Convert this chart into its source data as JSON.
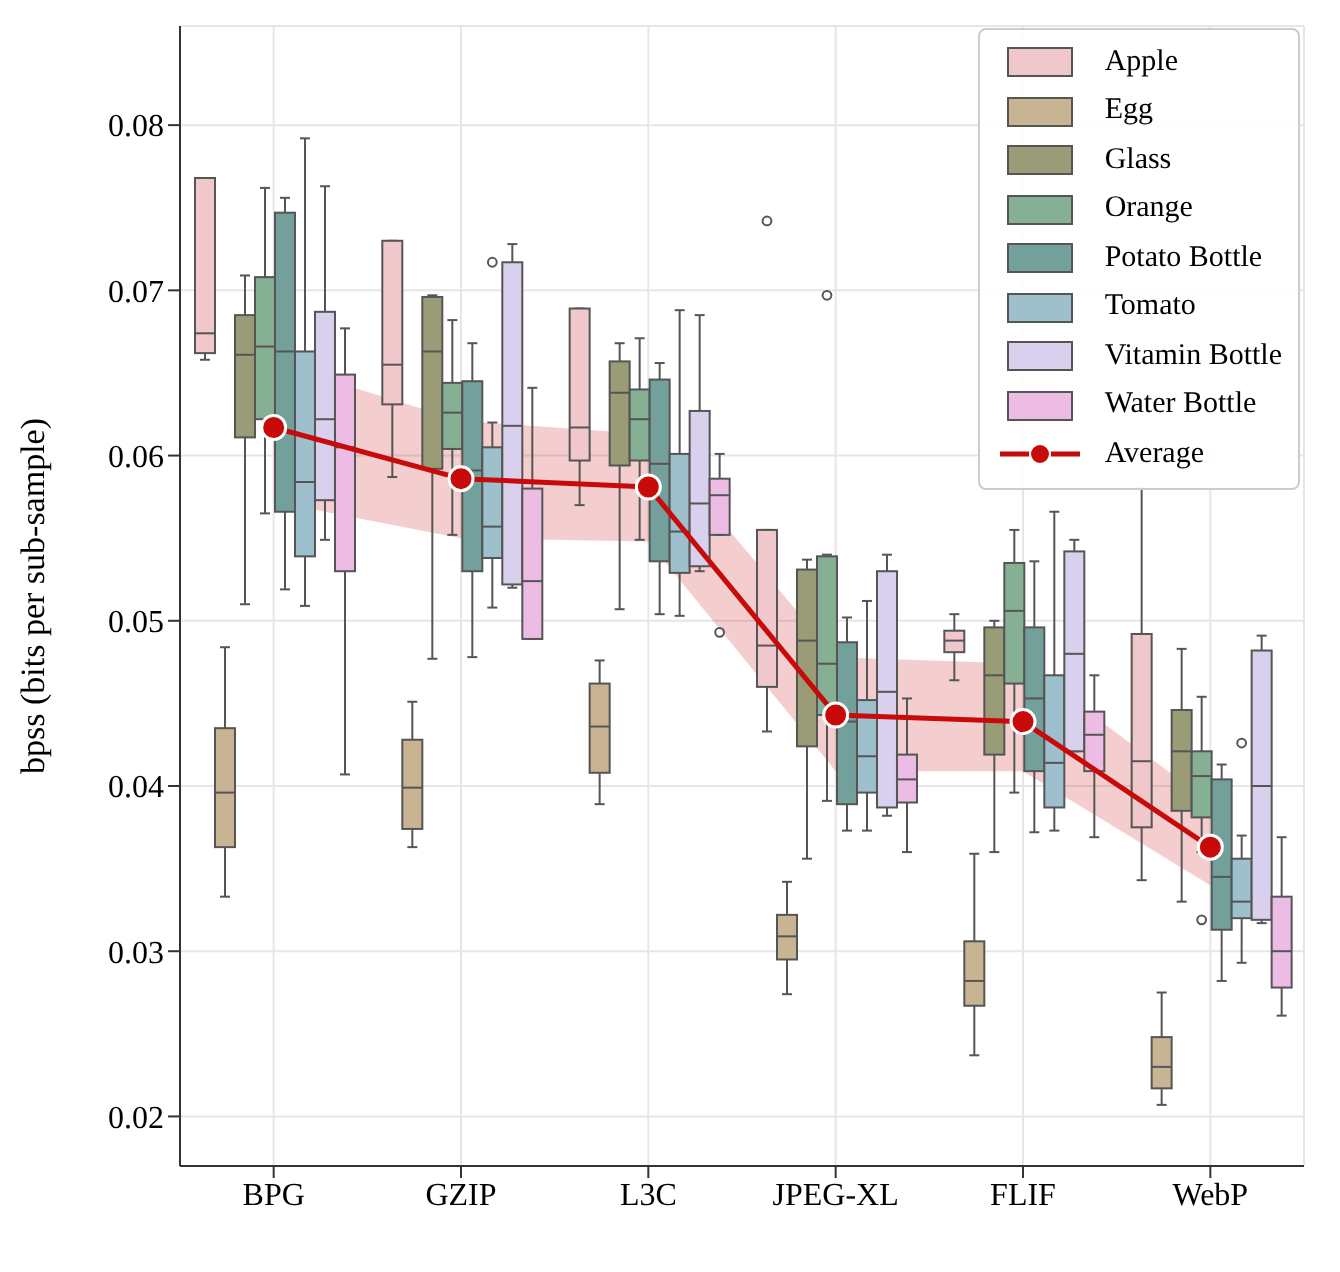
{
  "chart_data": {
    "type": "box",
    "ylabel": "bpss (bits per sub-sample)",
    "categories": [
      "BPG",
      "GZIP",
      "L3C",
      "JPEG-XL",
      "FLIF",
      "WebP"
    ],
    "ylim": [
      0.017,
      0.086
    ],
    "yticks": [
      0.02,
      0.03,
      0.04,
      0.05,
      0.06,
      0.07,
      0.08
    ],
    "grid": true,
    "legend": "top right",
    "marker": "circle",
    "line_style": "solid",
    "series": [
      {
        "name": "Apple",
        "color": "#f0c8cc",
        "boxes": [
          {
            "low": 0.0658,
            "q1": 0.0662,
            "median": 0.0674,
            "q3": 0.0768,
            "high": 0.0768
          },
          {
            "low": 0.0587,
            "q1": 0.0631,
            "median": 0.0655,
            "q3": 0.073,
            "high": 0.073
          },
          {
            "low": 0.057,
            "q1": 0.0597,
            "median": 0.0617,
            "q3": 0.0689,
            "high": 0.0689
          },
          {
            "low": 0.0433,
            "q1": 0.046,
            "median": 0.0485,
            "q3": 0.0555,
            "high": 0.0555,
            "outliers": [
              0.0742
            ]
          },
          {
            "low": 0.0464,
            "q1": 0.0481,
            "median": 0.0488,
            "q3": 0.0494,
            "high": 0.0504
          },
          {
            "low": 0.0343,
            "q1": 0.0375,
            "median": 0.0415,
            "q3": 0.0492,
            "high": 0.058
          }
        ]
      },
      {
        "name": "Egg",
        "color": "#c8b393",
        "boxes": [
          {
            "low": 0.0333,
            "q1": 0.0363,
            "median": 0.0396,
            "q3": 0.0435,
            "high": 0.0484
          },
          {
            "low": 0.0363,
            "q1": 0.0374,
            "median": 0.0399,
            "q3": 0.0428,
            "high": 0.0451
          },
          {
            "low": 0.0389,
            "q1": 0.0408,
            "median": 0.0436,
            "q3": 0.0462,
            "high": 0.0476
          },
          {
            "low": 0.0274,
            "q1": 0.0295,
            "median": 0.0309,
            "q3": 0.0322,
            "high": 0.0342
          },
          {
            "low": 0.0237,
            "q1": 0.0267,
            "median": 0.0282,
            "q3": 0.0306,
            "high": 0.0359
          },
          {
            "low": 0.0207,
            "q1": 0.0217,
            "median": 0.023,
            "q3": 0.0248,
            "high": 0.0275
          }
        ]
      },
      {
        "name": "Glass",
        "color": "#9a9c78",
        "boxes": [
          {
            "low": 0.051,
            "q1": 0.0611,
            "median": 0.0661,
            "q3": 0.0685,
            "high": 0.0709
          },
          {
            "low": 0.0477,
            "q1": 0.0592,
            "median": 0.0663,
            "q3": 0.0696,
            "high": 0.0697
          },
          {
            "low": 0.0507,
            "q1": 0.0594,
            "median": 0.0638,
            "q3": 0.0657,
            "high": 0.0668
          },
          {
            "low": 0.0356,
            "q1": 0.0424,
            "median": 0.0488,
            "q3": 0.0531,
            "high": 0.0537
          },
          {
            "low": 0.036,
            "q1": 0.0419,
            "median": 0.0467,
            "q3": 0.0496,
            "high": 0.05
          },
          {
            "low": 0.033,
            "q1": 0.0385,
            "median": 0.0421,
            "q3": 0.0446,
            "high": 0.0483
          }
        ]
      },
      {
        "name": "Orange",
        "color": "#85b094",
        "boxes": [
          {
            "low": 0.0565,
            "q1": 0.0622,
            "median": 0.0666,
            "q3": 0.0708,
            "high": 0.0762
          },
          {
            "low": 0.0552,
            "q1": 0.0604,
            "median": 0.0626,
            "q3": 0.0644,
            "high": 0.0682
          },
          {
            "low": 0.0549,
            "q1": 0.0597,
            "median": 0.0622,
            "q3": 0.064,
            "high": 0.0671
          },
          {
            "low": 0.0391,
            "q1": 0.0443,
            "median": 0.0474,
            "q3": 0.0539,
            "high": 0.054,
            "outliers": [
              0.0697
            ]
          },
          {
            "low": 0.0396,
            "q1": 0.0462,
            "median": 0.0506,
            "q3": 0.0535,
            "high": 0.0555
          },
          {
            "low": 0.036,
            "q1": 0.0381,
            "median": 0.0406,
            "q3": 0.0421,
            "high": 0.0454,
            "outliers": [
              0.0319
            ]
          }
        ]
      },
      {
        "name": "Potato Bottle",
        "color": "#74a09c",
        "boxes": [
          {
            "low": 0.0519,
            "q1": 0.0566,
            "median": 0.0663,
            "q3": 0.0747,
            "high": 0.0756
          },
          {
            "low": 0.0478,
            "q1": 0.053,
            "median": 0.0591,
            "q3": 0.0645,
            "high": 0.0668
          },
          {
            "low": 0.0504,
            "q1": 0.0536,
            "median": 0.0595,
            "q3": 0.0646,
            "high": 0.0656
          },
          {
            "low": 0.0373,
            "q1": 0.0389,
            "median": 0.0439,
            "q3": 0.0487,
            "high": 0.0502
          },
          {
            "low": 0.0372,
            "q1": 0.0409,
            "median": 0.0453,
            "q3": 0.0496,
            "high": 0.0536
          },
          {
            "low": 0.0282,
            "q1": 0.0313,
            "median": 0.0345,
            "q3": 0.0404,
            "high": 0.0413
          }
        ]
      },
      {
        "name": "Tomato",
        "color": "#9ebfcc",
        "boxes": [
          {
            "low": 0.0509,
            "q1": 0.0539,
            "median": 0.0584,
            "q3": 0.0663,
            "high": 0.0792
          },
          {
            "low": 0.0508,
            "q1": 0.0538,
            "median": 0.0557,
            "q3": 0.0605,
            "high": 0.062,
            "outliers": [
              0.0717
            ]
          },
          {
            "low": 0.0503,
            "q1": 0.0529,
            "median": 0.0554,
            "q3": 0.0601,
            "high": 0.0688
          },
          {
            "low": 0.0373,
            "q1": 0.0396,
            "median": 0.0418,
            "q3": 0.0452,
            "high": 0.0512
          },
          {
            "low": 0.0373,
            "q1": 0.0387,
            "median": 0.0414,
            "q3": 0.0467,
            "high": 0.0566
          },
          {
            "low": 0.0293,
            "q1": 0.032,
            "median": 0.033,
            "q3": 0.0356,
            "high": 0.037,
            "outliers": [
              0.0426
            ]
          }
        ]
      },
      {
        "name": "Vitamin Bottle",
        "color": "#d8d0ec",
        "boxes": [
          {
            "low": 0.0549,
            "q1": 0.0573,
            "median": 0.0622,
            "q3": 0.0687,
            "high": 0.0763
          },
          {
            "low": 0.052,
            "q1": 0.0522,
            "median": 0.0618,
            "q3": 0.0717,
            "high": 0.0728
          },
          {
            "low": 0.053,
            "q1": 0.0533,
            "median": 0.0571,
            "q3": 0.0627,
            "high": 0.0685
          },
          {
            "low": 0.0382,
            "q1": 0.0387,
            "median": 0.0457,
            "q3": 0.053,
            "high": 0.054
          },
          {
            "low": 0.0421,
            "q1": 0.0421,
            "median": 0.048,
            "q3": 0.0542,
            "high": 0.0549
          },
          {
            "low": 0.0317,
            "q1": 0.0319,
            "median": 0.04,
            "q3": 0.0482,
            "high": 0.0491
          }
        ]
      },
      {
        "name": "Water Bottle",
        "color": "#ecbce4",
        "boxes": [
          {
            "low": 0.0407,
            "q1": 0.053,
            "median": 0.0605,
            "q3": 0.0649,
            "high": 0.0677
          },
          {
            "low": 0.0489,
            "q1": 0.0489,
            "median": 0.0524,
            "q3": 0.058,
            "high": 0.0641
          },
          {
            "low": 0.0552,
            "q1": 0.0552,
            "median": 0.0576,
            "q3": 0.0586,
            "high": 0.0601,
            "outliers": [
              0.0493
            ]
          },
          {
            "low": 0.036,
            "q1": 0.039,
            "median": 0.0404,
            "q3": 0.0419,
            "high": 0.0453
          },
          {
            "low": 0.0369,
            "q1": 0.0409,
            "median": 0.0431,
            "q3": 0.0445,
            "high": 0.0467
          },
          {
            "low": 0.0261,
            "q1": 0.0278,
            "median": 0.03,
            "q3": 0.0333,
            "high": 0.0369
          }
        ]
      },
      {
        "name": "Average",
        "color": "#c80a0a",
        "type": "line",
        "values": [
          0.0617,
          0.0586,
          0.0581,
          0.0443,
          0.0439,
          0.0363
        ],
        "lower": [
          0.0572,
          0.055,
          0.0548,
          0.0409,
          0.0409,
          0.034
        ],
        "upper": [
          0.0656,
          0.0621,
          0.0613,
          0.0478,
          0.0474,
          0.039
        ]
      }
    ]
  }
}
